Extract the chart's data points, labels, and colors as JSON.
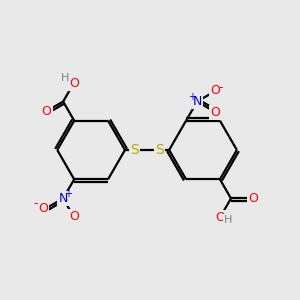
{
  "bg_color": "#e9e9e9",
  "colors": {
    "C": "#000000",
    "O": "#ff0000",
    "N": "#0000cc",
    "S": "#bbaa00",
    "H": "#708090"
  },
  "lc": [
    0.3,
    0.5
  ],
  "rc": [
    0.68,
    0.5
  ],
  "r": 0.115
}
